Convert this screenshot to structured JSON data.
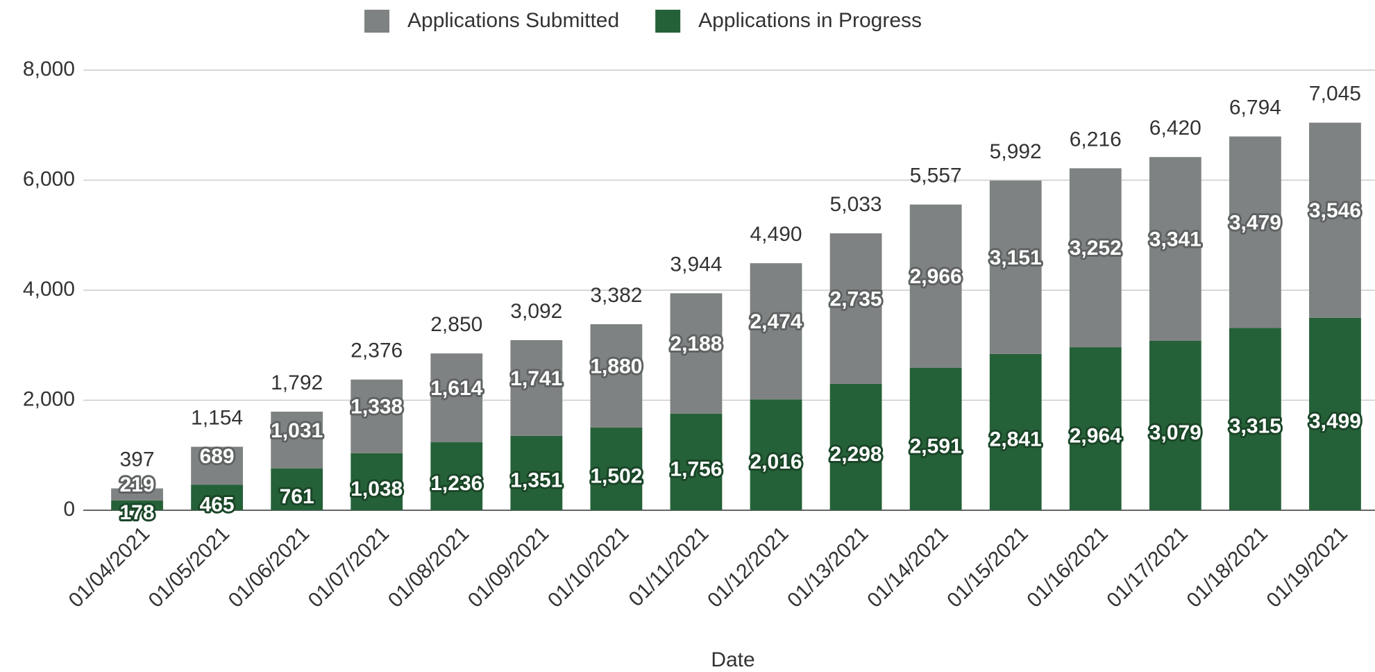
{
  "chart_data": {
    "type": "stacked_bar",
    "x_label": "Date",
    "categories": [
      "01/04/2021",
      "01/05/2021",
      "01/06/2021",
      "01/07/2021",
      "01/08/2021",
      "01/09/2021",
      "01/10/2021",
      "01/11/2021",
      "01/12/2021",
      "01/13/2021",
      "01/14/2021",
      "01/15/2021",
      "01/16/2021",
      "01/17/2021",
      "01/18/2021",
      "01/19/2021"
    ],
    "series": [
      {
        "name": "Applications in Progress",
        "color": "#256138",
        "values": [
          178,
          465,
          761,
          1038,
          1236,
          1351,
          1502,
          1756,
          2016,
          2298,
          2591,
          2841,
          2964,
          3079,
          3315,
          3499
        ],
        "value_labels": [
          "178",
          "465",
          "761",
          "1,038",
          "1,236",
          "1,351",
          "1,502",
          "1,756",
          "2,016",
          "2,298",
          "2,591",
          "2,841",
          "2,964",
          "3,079",
          "3,315",
          "3,499"
        ]
      },
      {
        "name": "Applications Submitted",
        "color": "#7f8282",
        "values": [
          219,
          689,
          1031,
          1338,
          1614,
          1741,
          1880,
          2188,
          2474,
          2735,
          2966,
          3151,
          3252,
          3341,
          3479,
          3546
        ],
        "value_labels": [
          "219",
          "689",
          "1,031",
          "1,338",
          "1,614",
          "1,741",
          "1,880",
          "2,188",
          "2,474",
          "2,735",
          "2,966",
          "3,151",
          "3,252",
          "3,341",
          "3,479",
          "3,546"
        ]
      }
    ],
    "legend_order": [
      1,
      0
    ],
    "totals": [
      397,
      1154,
      1792,
      2376,
      2850,
      3092,
      3382,
      3944,
      4490,
      5033,
      5557,
      5992,
      6216,
      6420,
      6794,
      7045
    ],
    "total_labels": [
      "397",
      "1,154",
      "1,792",
      "2,376",
      "2,850",
      "3,092",
      "3,382",
      "3,944",
      "4,490",
      "5,033",
      "5,557",
      "5,992",
      "6,216",
      "6,420",
      "6,794",
      "7,045"
    ],
    "ylim": [
      0,
      8000
    ],
    "yticks": [
      0,
      {
        "value": 2000,
        "label": "2,000"
      },
      {
        "value": 4000,
        "label": "4,000"
      },
      {
        "value": 6000,
        "label": "6,000"
      },
      {
        "value": 8000,
        "label": "8,000"
      }
    ],
    "grid": true,
    "legend": "top"
  }
}
